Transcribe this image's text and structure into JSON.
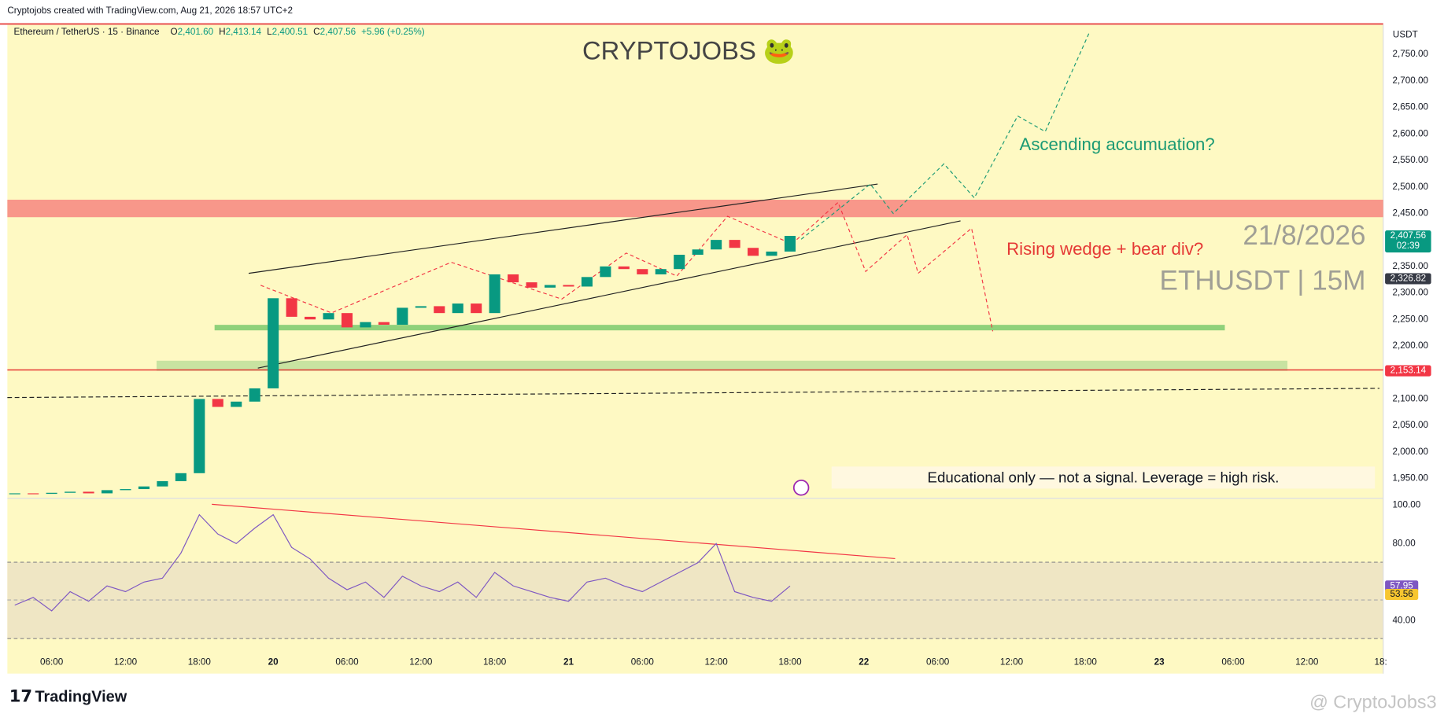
{
  "header": {
    "text": "Cryptojobs created with TradingView.com, Aug 21, 2026 18:57 UTC+2"
  },
  "chart_data": {
    "type": "candlestick",
    "symbol_info": "Ethereum / TetherUS · 15 · Binance",
    "ohlc": [
      {
        "label": "O",
        "value": "2,401.60"
      },
      {
        "label": "H",
        "value": "2,413.14"
      },
      {
        "label": "L",
        "value": "2,400.51"
      },
      {
        "label": "C",
        "value": "2,407.56"
      }
    ],
    "change": "+5.96 (+0.25%)",
    "title": "CRYPTOJOBS 🐸",
    "currency": "USDT",
    "x": [
      3,
      4.5,
      6,
      7.5,
      9,
      10.5,
      12,
      13.5,
      15,
      16.5,
      18,
      19.5,
      21,
      22.5,
      24,
      25.5,
      27,
      28.5,
      30,
      31.5,
      33,
      34.5,
      36,
      37.5,
      39,
      40.5,
      42,
      43.5,
      45,
      46.5,
      48,
      49.5,
      51,
      52.5,
      54,
      55.5,
      57,
      58.5,
      60,
      61.5,
      63,
      64.5,
      66
    ],
    "values": [
      1922,
      1921,
      1923,
      1925,
      1922,
      1928,
      1930,
      1935,
      1945,
      1960,
      2100,
      2085,
      2095,
      2120,
      2290,
      2255,
      2250,
      2262,
      2235,
      2245,
      2240,
      2272,
      2275,
      2262,
      2280,
      2262,
      2335,
      2320,
      2310,
      2315,
      2312,
      2330,
      2350,
      2345,
      2335,
      2345,
      2372,
      2382,
      2400,
      2385,
      2370,
      2378,
      2407.56
    ],
    "up_color": "#089981",
    "down_color": "#f23645",
    "xlim": [
      2.4,
      114.2
    ],
    "xticks": [
      {
        "value": 6,
        "label": "06:00"
      },
      {
        "value": 12,
        "label": "12:00"
      },
      {
        "value": 18,
        "label": "18:00"
      },
      {
        "value": 24,
        "label": "20"
      },
      {
        "value": 30,
        "label": "06:00"
      },
      {
        "value": 36,
        "label": "12:00"
      },
      {
        "value": 42,
        "label": "18:00"
      },
      {
        "value": 48,
        "label": "21"
      },
      {
        "value": 54,
        "label": "06:00"
      },
      {
        "value": 60,
        "label": "12:00"
      },
      {
        "value": 66,
        "label": "18:00"
      },
      {
        "value": 72,
        "label": "22"
      },
      {
        "value": 78,
        "label": "06:00"
      },
      {
        "value": 84,
        "label": "12:00"
      },
      {
        "value": 90,
        "label": "18:00"
      },
      {
        "value": 96,
        "label": "23"
      },
      {
        "value": 102,
        "label": "06:00"
      },
      {
        "value": 108,
        "label": "12:00"
      },
      {
        "value": 114,
        "label": "18:"
      }
    ],
    "ylim": [
      1913.5,
      2805.6
    ],
    "yticks": [
      {
        "value": 1950,
        "label": "1,950.00"
      },
      {
        "value": 2000,
        "label": "2,000.00"
      },
      {
        "value": 2050,
        "label": "2,050.00"
      },
      {
        "value": 2100,
        "label": "2,100.00"
      },
      {
        "value": 2150,
        "label": "2,150.00"
      },
      {
        "value": 2200,
        "label": "2,200.00"
      },
      {
        "value": 2250,
        "label": "2,250.00"
      },
      {
        "value": 2300,
        "label": "2,300.00"
      },
      {
        "value": 2350,
        "label": "2,350.00"
      },
      {
        "value": 2400,
        "label": "2,400.00"
      },
      {
        "value": 2450,
        "label": "2,450.00"
      },
      {
        "value": 2500,
        "label": "2,500.00"
      },
      {
        "value": 2550,
        "label": "2,550.00"
      },
      {
        "value": 2600,
        "label": "2,600.00"
      },
      {
        "value": 2650,
        "label": "2,650.00"
      },
      {
        "value": 2700,
        "label": "2,700.00"
      },
      {
        "value": 2750,
        "label": "2,750.00"
      }
    ],
    "price_labels": [
      {
        "value": 2407.56,
        "label": "2,407.56",
        "color": "#089981"
      },
      {
        "value": 2326.82,
        "label": "2,326.82",
        "color": "#363a45"
      },
      {
        "value": 2153.14,
        "label": "2,153.14",
        "color": "#f23645"
      }
    ],
    "countdown": "02:39",
    "annotations": {
      "ascending": "Ascending accumuation?",
      "wedge": "Rising wedge + bear div?",
      "date": "21/8/2026",
      "pair": "ETHUSDT | 15M",
      "disclaimer": "Educational only — not a signal. Leverage  = high risk."
    },
    "rsi": {
      "values": [
        48,
        52,
        45,
        55,
        50,
        58,
        55,
        60,
        62,
        75,
        95,
        85,
        80,
        88,
        95,
        78,
        72,
        62,
        56,
        60,
        52,
        63,
        58,
        55,
        60,
        52,
        65,
        58,
        55,
        52,
        50,
        60,
        62,
        58,
        55,
        60,
        65,
        70,
        80,
        55,
        52,
        50,
        57.95
      ],
      "color": "#7e57c2",
      "ylim": [
        12.4,
        103.3
      ],
      "yticks": [
        {
          "value": 100,
          "label": "100.00"
        },
        {
          "value": 80,
          "label": "80.00"
        },
        {
          "value": 40,
          "label": "40.00"
        }
      ],
      "value_labels": [
        {
          "value": 57.95,
          "label": "57.95",
          "color": "#7e57c2"
        },
        {
          "value": 53.56,
          "label": "53.56",
          "color": "#f7c62f"
        }
      ]
    }
  },
  "footer": {
    "brand": "TradingView",
    "watermark": "@ CryptoJobs3"
  }
}
